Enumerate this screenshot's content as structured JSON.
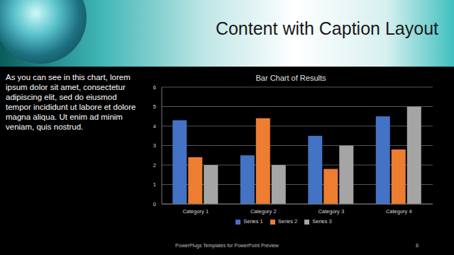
{
  "slide": {
    "title": "Content with Caption Layout",
    "caption": "As you can see in this chart, lorem ipsum dolor sit amet, consectetur adipiscing elit, sed do eiusmod tempor incididunt ut labore et dolore magna aliqua. Ut enim ad minim veniam, quis nostrud.",
    "footer": "PowerPlugs Templates for PowerPoint Preview",
    "page": "8"
  },
  "chart_data": {
    "type": "bar",
    "title": "Bar Chart of Results",
    "categories": [
      "Category 1",
      "Category 2",
      "Category 3",
      "Category 4"
    ],
    "series": [
      {
        "name": "Series 1",
        "color": "#4472c4",
        "values": [
          4.3,
          2.5,
          3.5,
          4.5
        ]
      },
      {
        "name": "Series 2",
        "color": "#ed7d31",
        "values": [
          2.4,
          4.4,
          1.8,
          2.8
        ]
      },
      {
        "name": "Series 3",
        "color": "#a5a5a5",
        "values": [
          2,
          2,
          3,
          5
        ]
      }
    ],
    "ylim": [
      0,
      6
    ],
    "yticks": [
      0,
      1,
      2,
      3,
      4,
      5,
      6
    ],
    "grid": true,
    "legend": "bottom"
  }
}
